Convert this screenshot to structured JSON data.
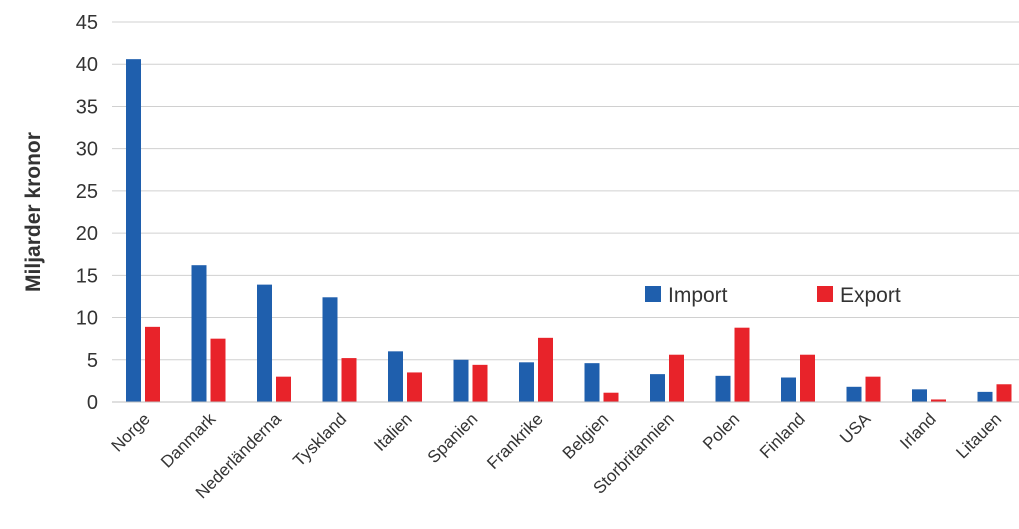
{
  "chart_data": {
    "type": "bar",
    "ylabel": "Miljarder kronor",
    "ylim": [
      0,
      45
    ],
    "yticks": [
      0,
      5,
      10,
      15,
      20,
      25,
      30,
      35,
      40,
      45
    ],
    "grid": true,
    "legend_position": "inside-right",
    "categories": [
      "Norge",
      "Danmark",
      "Nederländerna",
      "Tyskland",
      "Italien",
      "Spanien",
      "Frankrike",
      "Belgien",
      "Storbritannien",
      "Polen",
      "Finland",
      "USA",
      "Irland",
      "Litauen"
    ],
    "series": [
      {
        "name": "Import",
        "color": "#1f5fad",
        "values": [
          40.6,
          16.2,
          13.9,
          12.4,
          6.0,
          5.0,
          4.7,
          4.6,
          3.3,
          3.1,
          2.9,
          1.8,
          1.5,
          1.2
        ]
      },
      {
        "name": "Export",
        "color": "#e8232a",
        "values": [
          8.9,
          7.5,
          3.0,
          5.2,
          3.5,
          4.4,
          7.6,
          1.1,
          5.6,
          8.8,
          5.6,
          3.0,
          0.3,
          2.1
        ]
      }
    ]
  }
}
